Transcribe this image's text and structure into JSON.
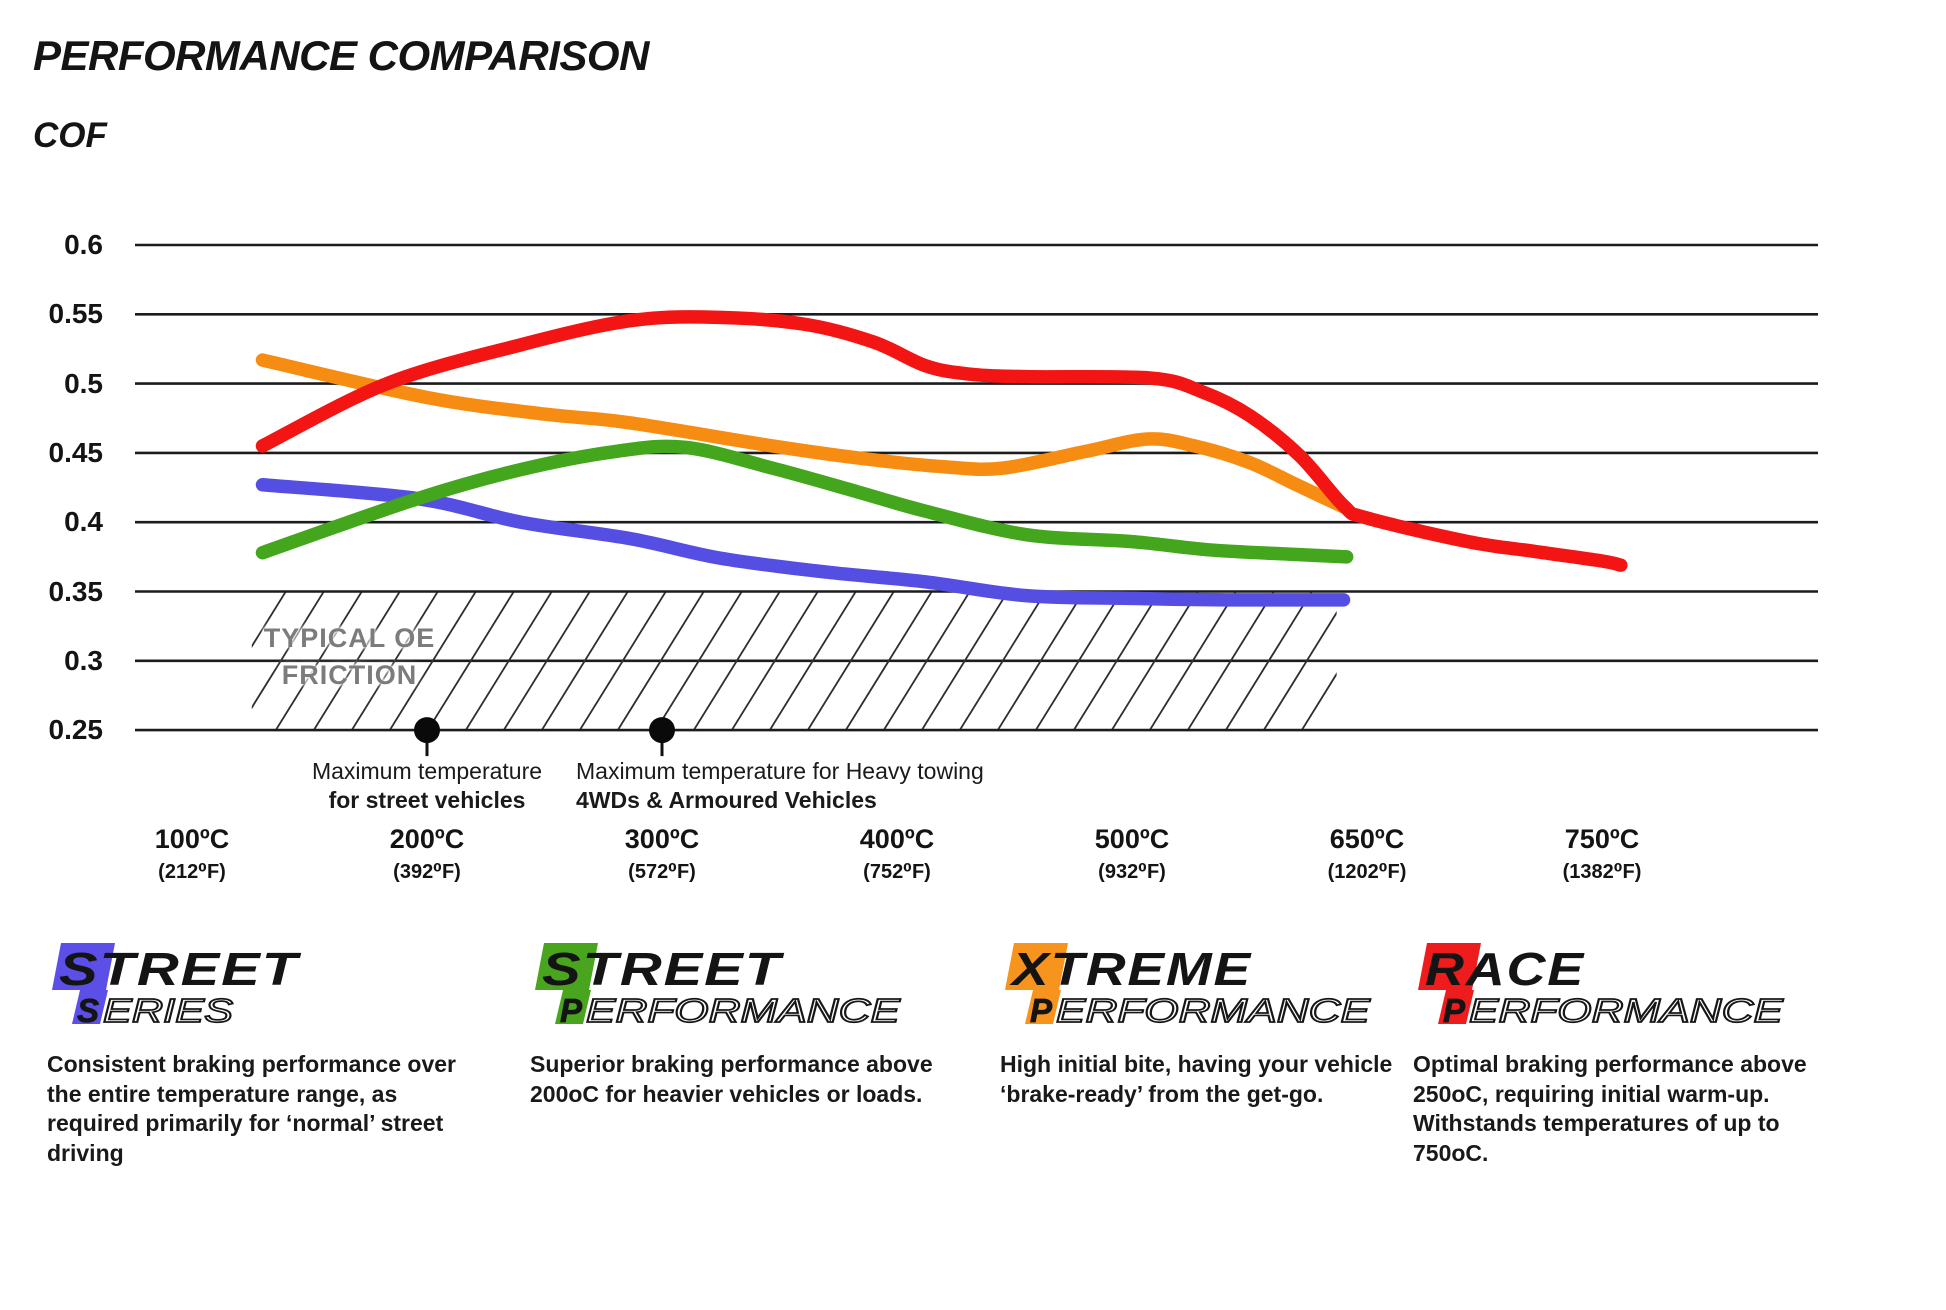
{
  "title": "PERFORMANCE COMPARISON",
  "y_axis_title": "COF",
  "chart_data": {
    "type": "line",
    "title": "PERFORMANCE COMPARISON",
    "ylabel": "COF",
    "grid": "horizontal",
    "ylim": [
      0.25,
      0.625
    ],
    "y_ticks": [
      "0.6",
      "0.55",
      "0.5",
      "0.45",
      "0.4",
      "0.35",
      "0.3",
      "0.25"
    ],
    "x_ticks": [
      {
        "temp": 100,
        "celsius": "100ºC",
        "fahrenheit": "(212⁰F)"
      },
      {
        "temp": 200,
        "celsius": "200ºC",
        "fahrenheit": "(392⁰F)"
      },
      {
        "temp": 300,
        "celsius": "300ºC",
        "fahrenheit": "(572⁰F)"
      },
      {
        "temp": 400,
        "celsius": "400ºC",
        "fahrenheit": "(752⁰F)"
      },
      {
        "temp": 500,
        "celsius": "500ºC",
        "fahrenheit": "(932⁰F)"
      },
      {
        "temp": 650,
        "celsius": "650ºC",
        "fahrenheit": "(1202⁰F)"
      },
      {
        "temp": 750,
        "celsius": "750ºC",
        "fahrenheit": "(1382⁰F)"
      }
    ],
    "series": [
      {
        "name": "Street Series",
        "color": "#544ee2",
        "points": [
          [
            130,
            0.427
          ],
          [
            196,
            0.417
          ],
          [
            240,
            0.4
          ],
          [
            287,
            0.388
          ],
          [
            325,
            0.374
          ],
          [
            370,
            0.364
          ],
          [
            412,
            0.357
          ],
          [
            455,
            0.347
          ],
          [
            500,
            0.345
          ],
          [
            560,
            0.344
          ],
          [
            635,
            0.344
          ]
        ]
      },
      {
        "name": "Street Performance",
        "color": "#43a61d",
        "points": [
          [
            130,
            0.378
          ],
          [
            196,
            0.417
          ],
          [
            240,
            0.438
          ],
          [
            280,
            0.451
          ],
          [
            310,
            0.454
          ],
          [
            347,
            0.439
          ],
          [
            383,
            0.422
          ],
          [
            412,
            0.408
          ],
          [
            455,
            0.391
          ],
          [
            500,
            0.386
          ],
          [
            550,
            0.38
          ],
          [
            600,
            0.377
          ],
          [
            637,
            0.375
          ]
        ]
      },
      {
        "name": "Xtreme Performance",
        "color": "#f78c12",
        "points": [
          [
            130,
            0.517
          ],
          [
            200,
            0.49
          ],
          [
            250,
            0.478
          ],
          [
            285,
            0.472
          ],
          [
            347,
            0.455
          ],
          [
            385,
            0.446
          ],
          [
            420,
            0.44
          ],
          [
            445,
            0.439
          ],
          [
            480,
            0.451
          ],
          [
            510,
            0.46
          ],
          [
            540,
            0.455
          ],
          [
            575,
            0.443
          ],
          [
            605,
            0.427
          ],
          [
            635,
            0.411
          ]
        ]
      },
      {
        "name": "Race Performance",
        "color": "#f31414",
        "points": [
          [
            130,
            0.455
          ],
          [
            183,
            0.5
          ],
          [
            240,
            0.528
          ],
          [
            285,
            0.545
          ],
          [
            320,
            0.548
          ],
          [
            360,
            0.543
          ],
          [
            390,
            0.53
          ],
          [
            412,
            0.513
          ],
          [
            430,
            0.507
          ],
          [
            455,
            0.505
          ],
          [
            512,
            0.504
          ],
          [
            545,
            0.494
          ],
          [
            575,
            0.477
          ],
          [
            607,
            0.448
          ],
          [
            635,
            0.412
          ],
          [
            650,
            0.403
          ],
          [
            693,
            0.386
          ],
          [
            721,
            0.379
          ],
          [
            750,
            0.372
          ],
          [
            758,
            0.369
          ]
        ]
      }
    ],
    "oe_band": {
      "label_line1": "TYPICAL OE",
      "label_line2": "FRICTION",
      "cof_range": [
        0.25,
        0.35
      ],
      "temp_range": [
        128,
        637
      ]
    },
    "annotations": [
      {
        "dot_temp": 200,
        "dot_cof": 0.25,
        "line1": "Maximum temperature",
        "line2": "for street vehicles"
      },
      {
        "dot_temp": 300,
        "dot_cof": 0.25,
        "line1": "Maximum temperature for Heavy towing",
        "line2": "4WDs & Armoured Vehicles"
      }
    ]
  },
  "legend": [
    {
      "brand_word": "STREET",
      "brand_sub": "SERIES",
      "color": "#5b4fe8",
      "description": "Consistent braking performance over the entire temperature range, as required primarily for ‘normal’ street driving"
    },
    {
      "brand_word": "STREET",
      "brand_sub": "PERFORMANCE",
      "color": "#4aa51e",
      "description": "Superior braking performance above 200oC for heavier vehicles or loads."
    },
    {
      "brand_word": "XTREME",
      "brand_sub": "PERFORMANCE",
      "color": "#f7941d",
      "description": "High initial bite, having your vehicle ‘brake-ready’ from the get-go."
    },
    {
      "brand_word": "RACE",
      "brand_sub": "PERFORMANCE",
      "color": "#ee1c1c",
      "description": "Optimal braking performance above 250oC, requiring initial warm-up. Withstands temperatures of up to 750oC."
    }
  ]
}
